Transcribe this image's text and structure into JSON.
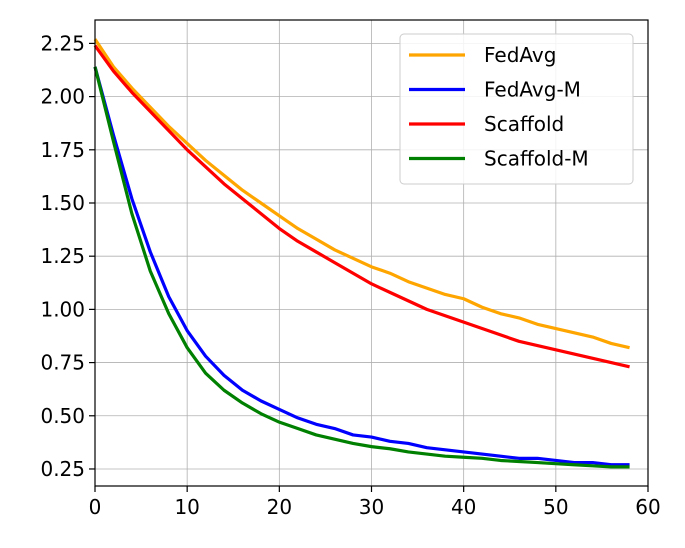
{
  "chart_data": {
    "type": "line",
    "title": "",
    "xlabel": "",
    "ylabel": "",
    "xlim": [
      0,
      60
    ],
    "ylim": [
      0.17,
      2.36
    ],
    "xticks": [
      0,
      10,
      20,
      30,
      40,
      50,
      60
    ],
    "xtick_labels": [
      "0",
      "10",
      "20",
      "30",
      "40",
      "50",
      "60"
    ],
    "yticks": [
      0.25,
      0.5,
      0.75,
      1.0,
      1.25,
      1.5,
      1.75,
      2.0,
      2.25
    ],
    "ytick_labels": [
      "0.25",
      "0.50",
      "0.75",
      "1.00",
      "1.25",
      "1.50",
      "1.75",
      "2.00",
      "2.25"
    ],
    "grid": true,
    "legend_position": "top-right",
    "x": [
      0,
      2,
      4,
      6,
      8,
      10,
      12,
      14,
      16,
      18,
      20,
      22,
      24,
      26,
      28,
      30,
      32,
      34,
      36,
      38,
      40,
      42,
      44,
      46,
      48,
      50,
      52,
      54,
      56,
      58
    ],
    "series": [
      {
        "name": "FedAvg",
        "color": "#FFA500",
        "values": [
          2.27,
          2.14,
          2.04,
          1.95,
          1.86,
          1.78,
          1.7,
          1.63,
          1.56,
          1.5,
          1.44,
          1.38,
          1.33,
          1.28,
          1.24,
          1.2,
          1.17,
          1.13,
          1.1,
          1.07,
          1.05,
          1.01,
          0.98,
          0.96,
          0.93,
          0.91,
          0.89,
          0.87,
          0.84,
          0.82
        ]
      },
      {
        "name": "FedAvg-M",
        "color": "#0000FF",
        "values": [
          2.14,
          1.82,
          1.52,
          1.27,
          1.06,
          0.9,
          0.78,
          0.69,
          0.62,
          0.57,
          0.53,
          0.49,
          0.46,
          0.44,
          0.41,
          0.4,
          0.38,
          0.37,
          0.35,
          0.34,
          0.33,
          0.32,
          0.31,
          0.3,
          0.3,
          0.29,
          0.28,
          0.28,
          0.27,
          0.27
        ]
      },
      {
        "name": "Scaffold",
        "color": "#FF0000",
        "values": [
          2.24,
          2.12,
          2.02,
          1.93,
          1.84,
          1.75,
          1.67,
          1.59,
          1.52,
          1.45,
          1.38,
          1.32,
          1.27,
          1.22,
          1.17,
          1.12,
          1.08,
          1.04,
          1.0,
          0.97,
          0.94,
          0.91,
          0.88,
          0.85,
          0.83,
          0.81,
          0.79,
          0.77,
          0.75,
          0.73
        ]
      },
      {
        "name": "Scaffold-M",
        "color": "#008000",
        "values": [
          2.14,
          1.79,
          1.45,
          1.18,
          0.98,
          0.82,
          0.7,
          0.62,
          0.56,
          0.51,
          0.47,
          0.44,
          0.41,
          0.39,
          0.37,
          0.355,
          0.345,
          0.33,
          0.32,
          0.31,
          0.305,
          0.3,
          0.29,
          0.285,
          0.28,
          0.275,
          0.27,
          0.265,
          0.26,
          0.26
        ]
      }
    ]
  }
}
